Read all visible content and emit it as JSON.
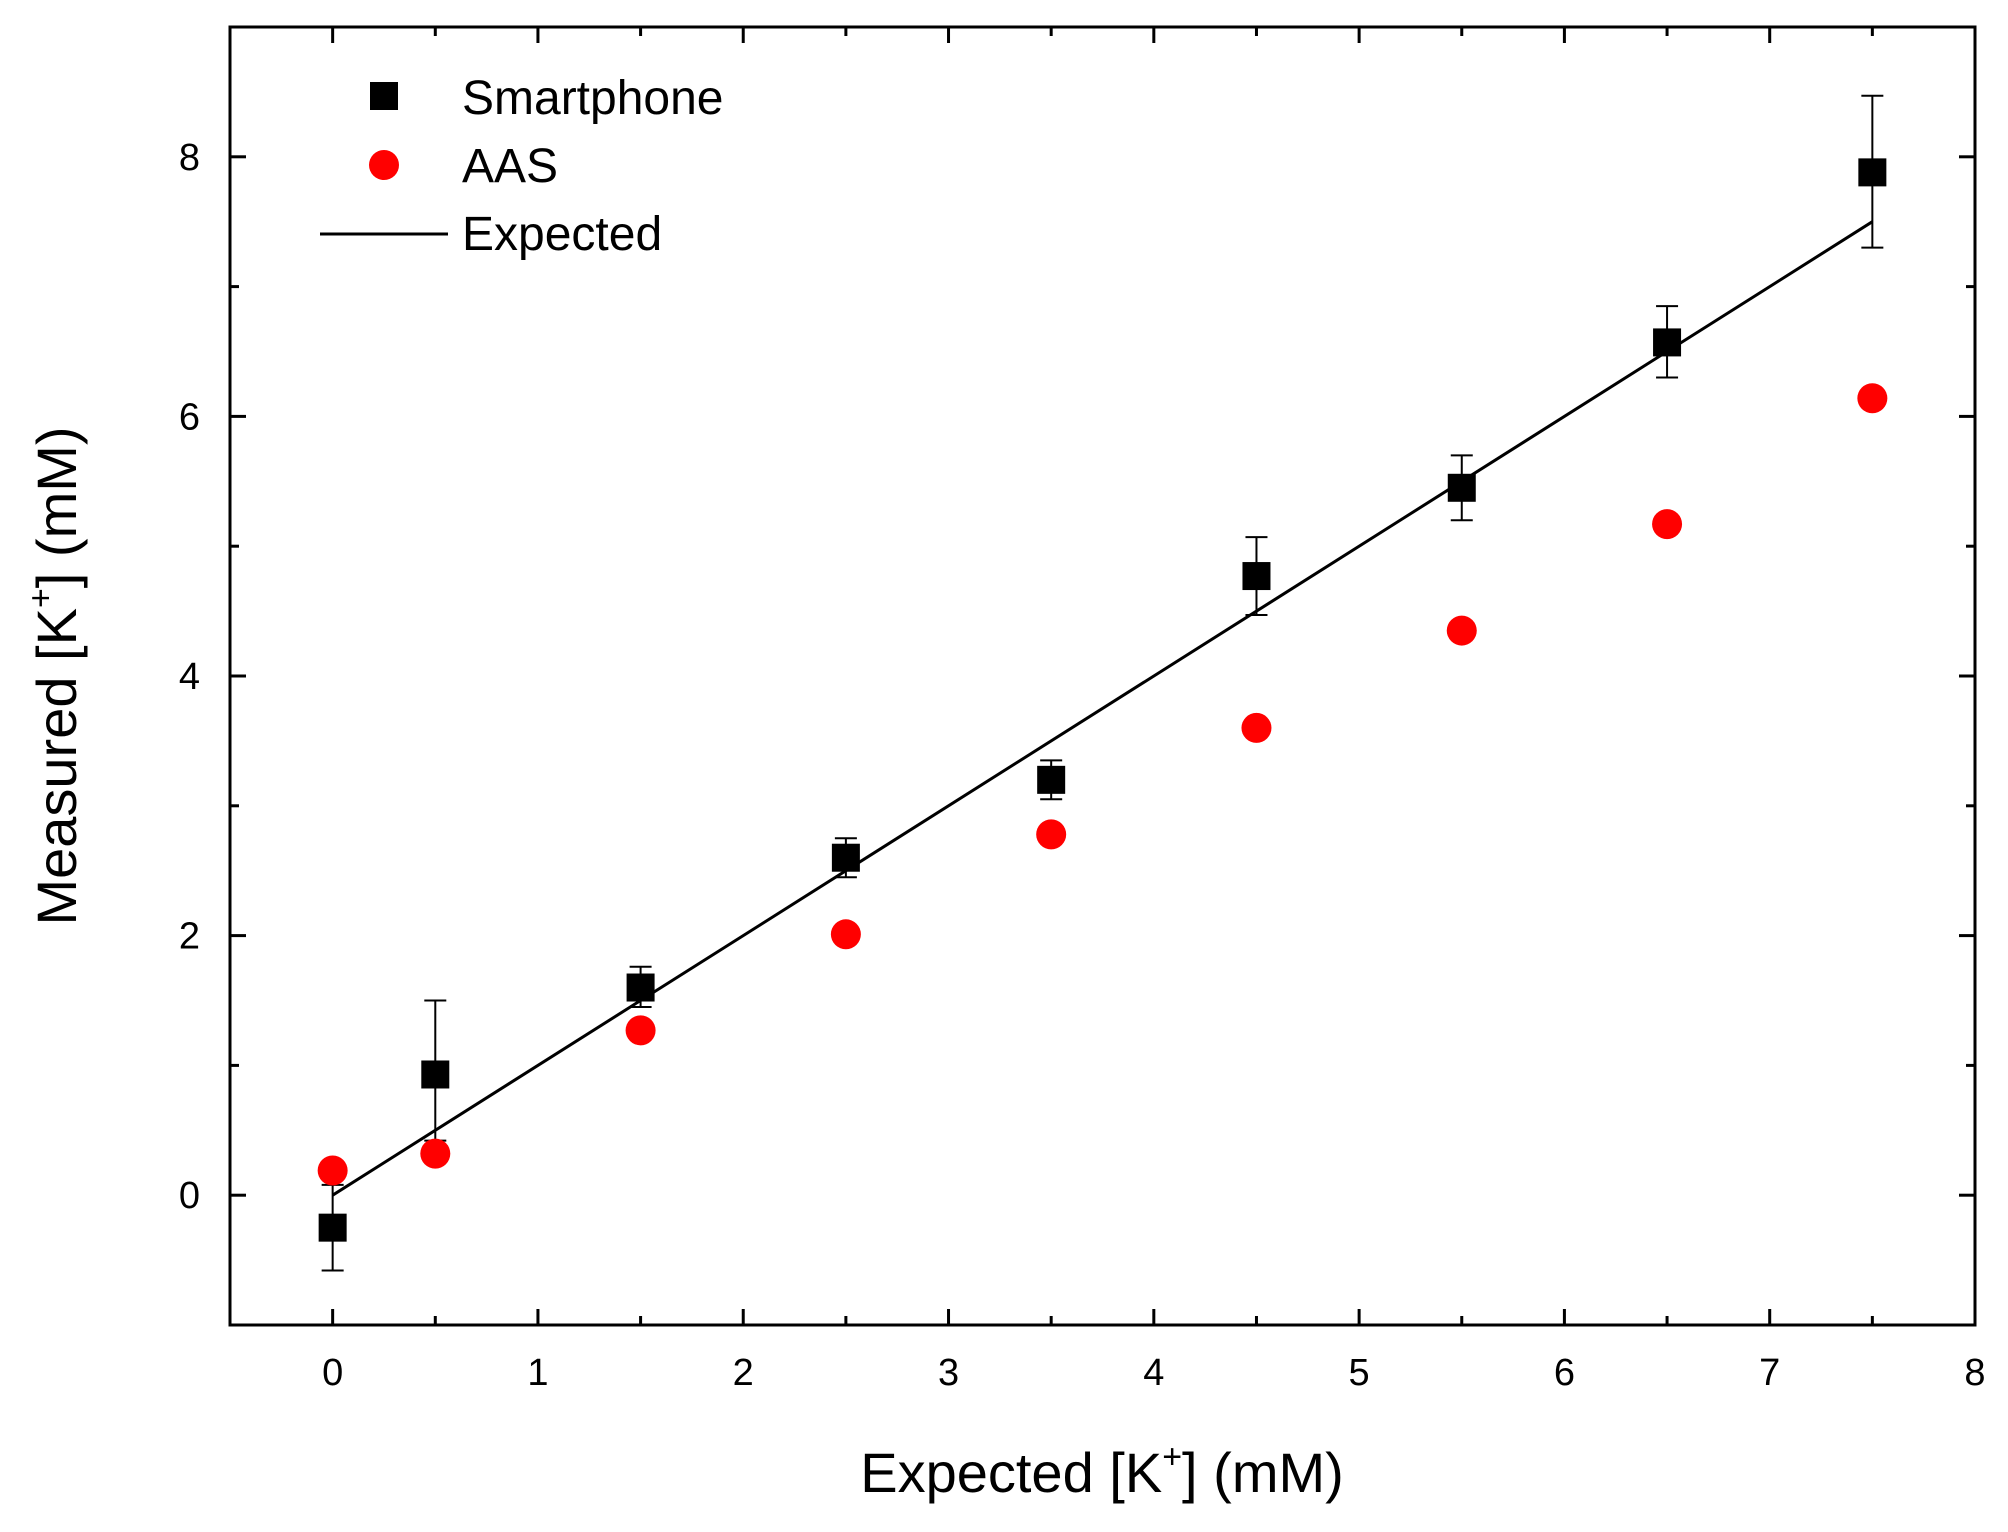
{
  "chart_data": {
    "type": "scatter",
    "xlabel": "Expected [K⁺] (mM)",
    "xlabel_parts": {
      "pre": "Expected [K",
      "sup": "+",
      "post": "] (mM)"
    },
    "ylabel": "Measured [K⁺] (mM)",
    "ylabel_parts": {
      "pre": "Measured [K",
      "sup": "+",
      "post": "] (mM)"
    },
    "xlim": [
      -0.5,
      8
    ],
    "ylim": [
      -1,
      9
    ],
    "x_ticks": [
      0,
      1,
      2,
      3,
      4,
      5,
      6,
      7,
      8
    ],
    "y_ticks": [
      0,
      2,
      4,
      6,
      8
    ],
    "x_tick_labels": [
      "0",
      "1",
      "2",
      "3",
      "4",
      "5",
      "6",
      "7",
      "8"
    ],
    "y_tick_labels": [
      "0",
      "2",
      "4",
      "6",
      "8"
    ],
    "grid": false,
    "legend_position": "top-left",
    "series": [
      {
        "name": "Smartphone",
        "marker": "square",
        "color": "#000000",
        "x": [
          0,
          0.5,
          1.5,
          2.5,
          3.5,
          4.5,
          5.5,
          6.5,
          7.5
        ],
        "y": [
          -0.25,
          0.93,
          1.6,
          2.6,
          3.2,
          4.77,
          5.45,
          6.57,
          7.88
        ],
        "err_low": [
          -0.58,
          0.42,
          1.45,
          2.45,
          3.05,
          4.47,
          5.2,
          6.3,
          7.3
        ],
        "err_high": [
          0.08,
          1.5,
          1.76,
          2.75,
          3.35,
          5.07,
          5.7,
          6.85,
          8.47
        ]
      },
      {
        "name": "AAS",
        "marker": "circle",
        "color": "#ff0000",
        "x": [
          0,
          0.5,
          1.5,
          2.5,
          3.5,
          4.5,
          5.5,
          6.5,
          7.5
        ],
        "y": [
          0.19,
          0.32,
          1.27,
          2.01,
          2.78,
          3.6,
          4.35,
          5.17,
          6.14
        ]
      },
      {
        "name": "Expected",
        "marker": "line",
        "color": "#000000",
        "x": [
          0,
          7.5
        ],
        "y": [
          0,
          7.5
        ]
      }
    ]
  }
}
